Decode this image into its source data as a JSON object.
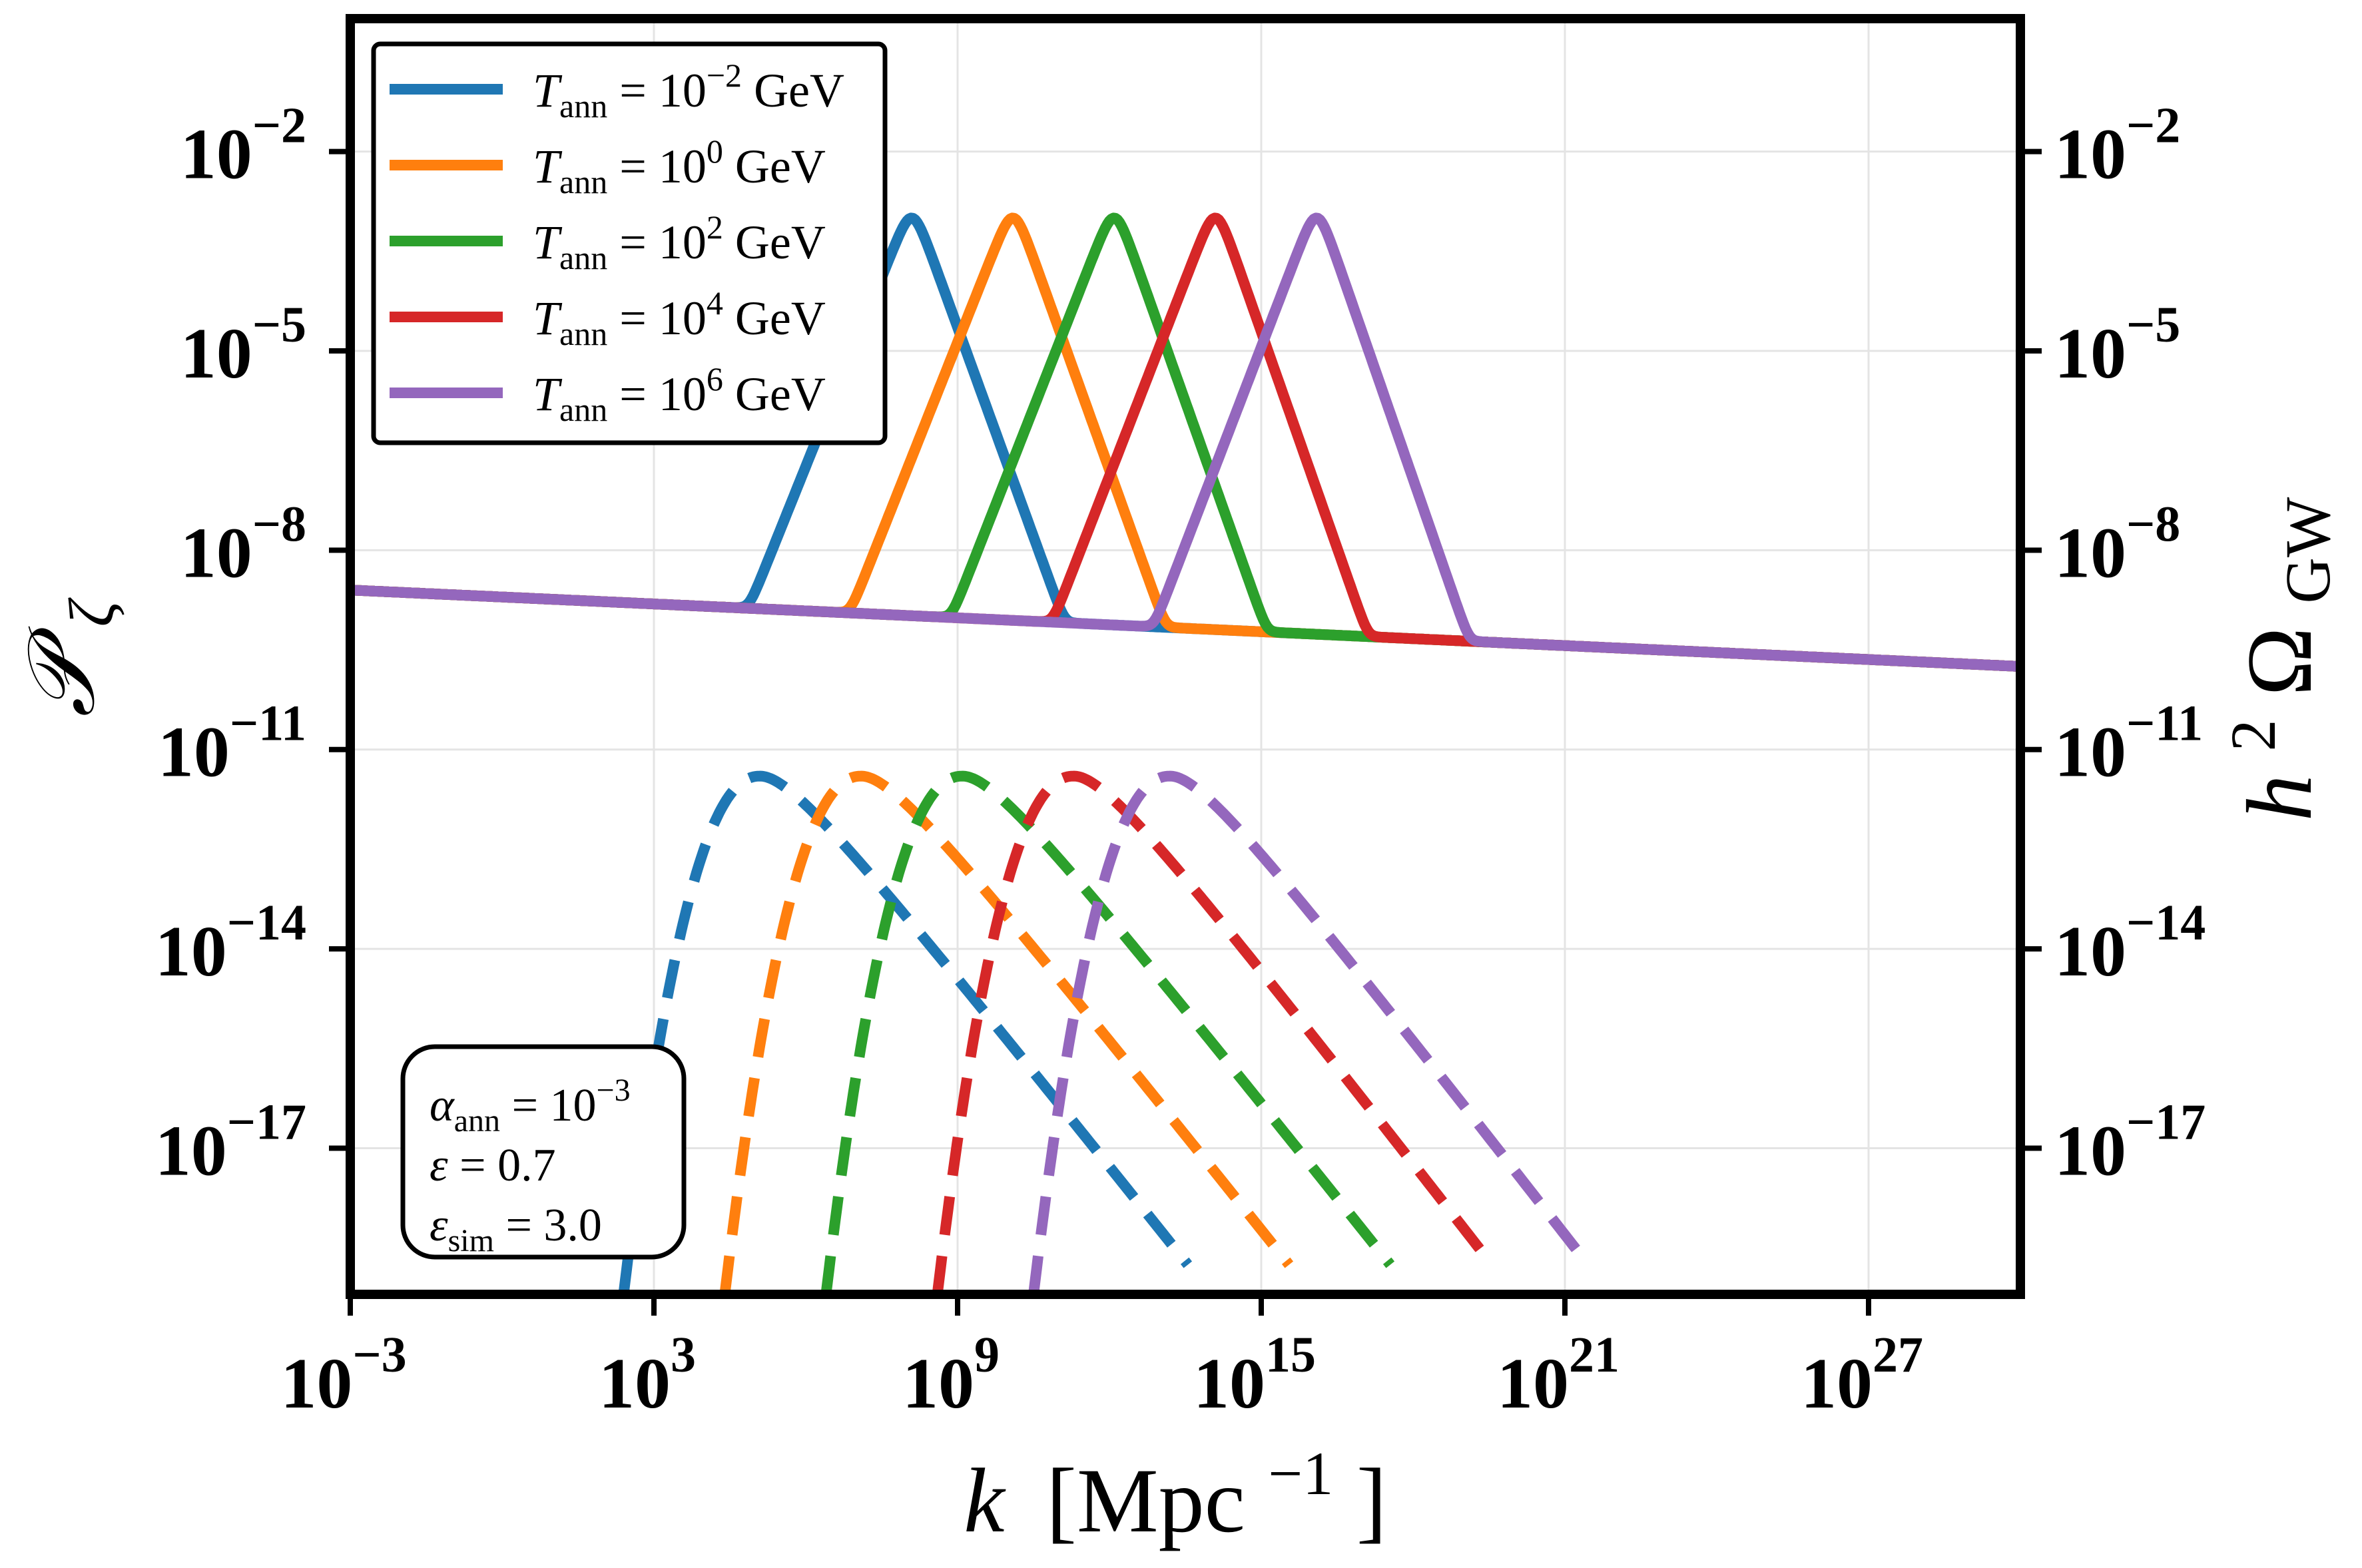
{
  "chart_data": {
    "type": "line",
    "title": "",
    "xlabel": {
      "main": "k",
      "open": "[Mpc",
      "sup": "−1",
      "close": "]"
    },
    "ylabel_left": {
      "main": "𝒫",
      "sub": "ζ"
    },
    "ylabel_right": {
      "main": "h",
      "sup": "2",
      "omega": "Ω",
      "sub": "GW"
    },
    "xscale": "log",
    "yscale": "log",
    "xlim_log10": [
      -3,
      30
    ],
    "ylim_log10": [
      -19.2,
      0
    ],
    "grid": true,
    "legend_placement": "top-left",
    "x_ticks": [
      {
        "log10": -3,
        "base": "10",
        "exp": "−3"
      },
      {
        "log10": 3,
        "base": "10",
        "exp": "3"
      },
      {
        "log10": 9,
        "base": "10",
        "exp": "9"
      },
      {
        "log10": 15,
        "base": "10",
        "exp": "15"
      },
      {
        "log10": 21,
        "base": "10",
        "exp": "21"
      },
      {
        "log10": 27,
        "base": "10",
        "exp": "27"
      }
    ],
    "y_ticks": [
      {
        "log10": -2,
        "base": "10",
        "exp": "−2"
      },
      {
        "log10": -5,
        "base": "10",
        "exp": "−5"
      },
      {
        "log10": -8,
        "base": "10",
        "exp": "−8"
      },
      {
        "log10": -11,
        "base": "10",
        "exp": "−11"
      },
      {
        "log10": -14,
        "base": "10",
        "exp": "−14"
      },
      {
        "log10": -17,
        "base": "10",
        "exp": "−17"
      }
    ],
    "baseline_Pzeta": {
      "log10k_range": [
        -3,
        30
      ],
      "log10P_at_start": -8.6,
      "log10P_at_end": -9.75
    },
    "series": [
      {
        "name": {
          "T": "T",
          "sub": "ann",
          "eq": " = 10",
          "exp": "−2",
          "unit": " GeV"
        },
        "color": "#1f77b4",
        "Pzeta_peak": {
          "log10k": 8.1,
          "log10P": -3.0,
          "rise_start_log10k": 5.0,
          "fall_end_log10k": 11.0
        },
        "OmegaGW_peak": {
          "log10k": 5.1,
          "log10Omega": -11.4,
          "left_edge_log10k": 2.4,
          "right_end": {
            "log10k": 13.2,
            "log10Omega": -19.2
          }
        }
      },
      {
        "name": {
          "T": "T",
          "sub": "ann",
          "eq": " = 10",
          "exp": "0",
          "unit": " GeV"
        },
        "color": "#ff7f0e",
        "Pzeta_peak": {
          "log10k": 10.1,
          "log10P": -3.0,
          "rise_start_log10k": 7.0,
          "fall_end_log10k": 13.0
        },
        "OmegaGW_peak": {
          "log10k": 7.1,
          "log10Omega": -11.4,
          "left_edge_log10k": 4.4,
          "right_end": {
            "log10k": 15.2,
            "log10Omega": -19.2
          }
        }
      },
      {
        "name": {
          "T": "T",
          "sub": "ann",
          "eq": " = 10",
          "exp": "2",
          "unit": " GeV"
        },
        "color": "#2ca02c",
        "Pzeta_peak": {
          "log10k": 12.1,
          "log10P": -3.0,
          "rise_start_log10k": 9.0,
          "fall_end_log10k": 15.0
        },
        "OmegaGW_peak": {
          "log10k": 9.1,
          "log10Omega": -11.4,
          "left_edge_log10k": 6.4,
          "right_end": {
            "log10k": 17.2,
            "log10Omega": -19.2
          }
        }
      },
      {
        "name": {
          "T": "T",
          "sub": "ann",
          "eq": " = 10",
          "exp": "4",
          "unit": " GeV"
        },
        "color": "#d62728",
        "Pzeta_peak": {
          "log10k": 14.1,
          "log10P": -3.0,
          "rise_start_log10k": 11.0,
          "fall_end_log10k": 17.0
        },
        "OmegaGW_peak": {
          "log10k": 11.3,
          "log10Omega": -11.4,
          "left_edge_log10k": 8.6,
          "right_end": {
            "log10k": 19.2,
            "log10Omega": -19.2
          }
        }
      },
      {
        "name": {
          "T": "T",
          "sub": "ann",
          "eq": " = 10",
          "exp": "6",
          "unit": " GeV"
        },
        "color": "#9467bd",
        "Pzeta_peak": {
          "log10k": 16.1,
          "log10P": -3.0,
          "rise_start_log10k": 13.0,
          "fall_end_log10k": 19.0
        },
        "OmegaGW_peak": {
          "log10k": 13.2,
          "log10Omega": -11.4,
          "left_edge_log10k": 10.5,
          "right_end": {
            "log10k": 21.1,
            "log10Omega": -19.2
          }
        }
      }
    ],
    "annotation": {
      "lines": [
        {
          "sym": "α",
          "sub": "ann",
          "eq": " = 10",
          "exp": "−3"
        },
        {
          "sym": "ε",
          "sub": "",
          "eq": " = 0.7",
          "exp": ""
        },
        {
          "sym": "ε",
          "sub": "sim",
          "eq": " = 3.0",
          "exp": ""
        }
      ]
    }
  }
}
